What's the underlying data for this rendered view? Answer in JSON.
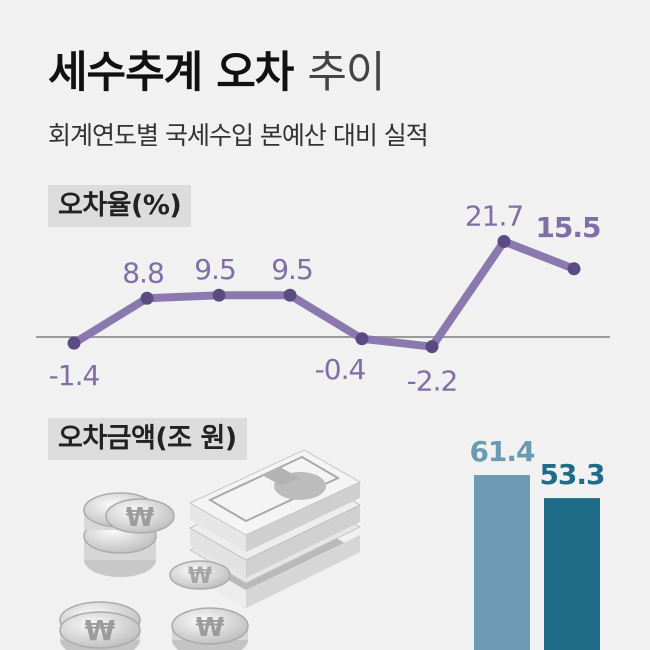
{
  "header": {
    "title_bold": "세수추계 오차",
    "title_light": "추이",
    "subtitle": "회계연도별 국세수입 본예산 대비 실적"
  },
  "colors": {
    "line": "#8a78ae",
    "label": "#7f6fa5",
    "bar_light": "#6b9ab2",
    "bar_dark": "#1f6c88",
    "baseline": "#9a9a9a"
  },
  "chart_data": [
    {
      "type": "line",
      "title": "오차율(%)",
      "values": [
        -1.4,
        8.8,
        9.5,
        9.5,
        -0.4,
        -2.2,
        21.7,
        15.5
      ],
      "labels": [
        "-1.4",
        "8.8",
        "9.5",
        "9.5",
        "-0.4",
        "-2.2",
        "21.7",
        "15.5"
      ],
      "baseline": 0,
      "grid": false
    },
    {
      "type": "bar",
      "title": "오차금액(조 원)",
      "values": [
        61.4,
        53.3
      ],
      "labels": [
        "61.4",
        "53.3"
      ],
      "colors": [
        "#6b9ab2",
        "#1f6c88"
      ]
    }
  ],
  "illustration": {
    "coin_symbol": "₩",
    "description": "coins-and-banknotes"
  }
}
